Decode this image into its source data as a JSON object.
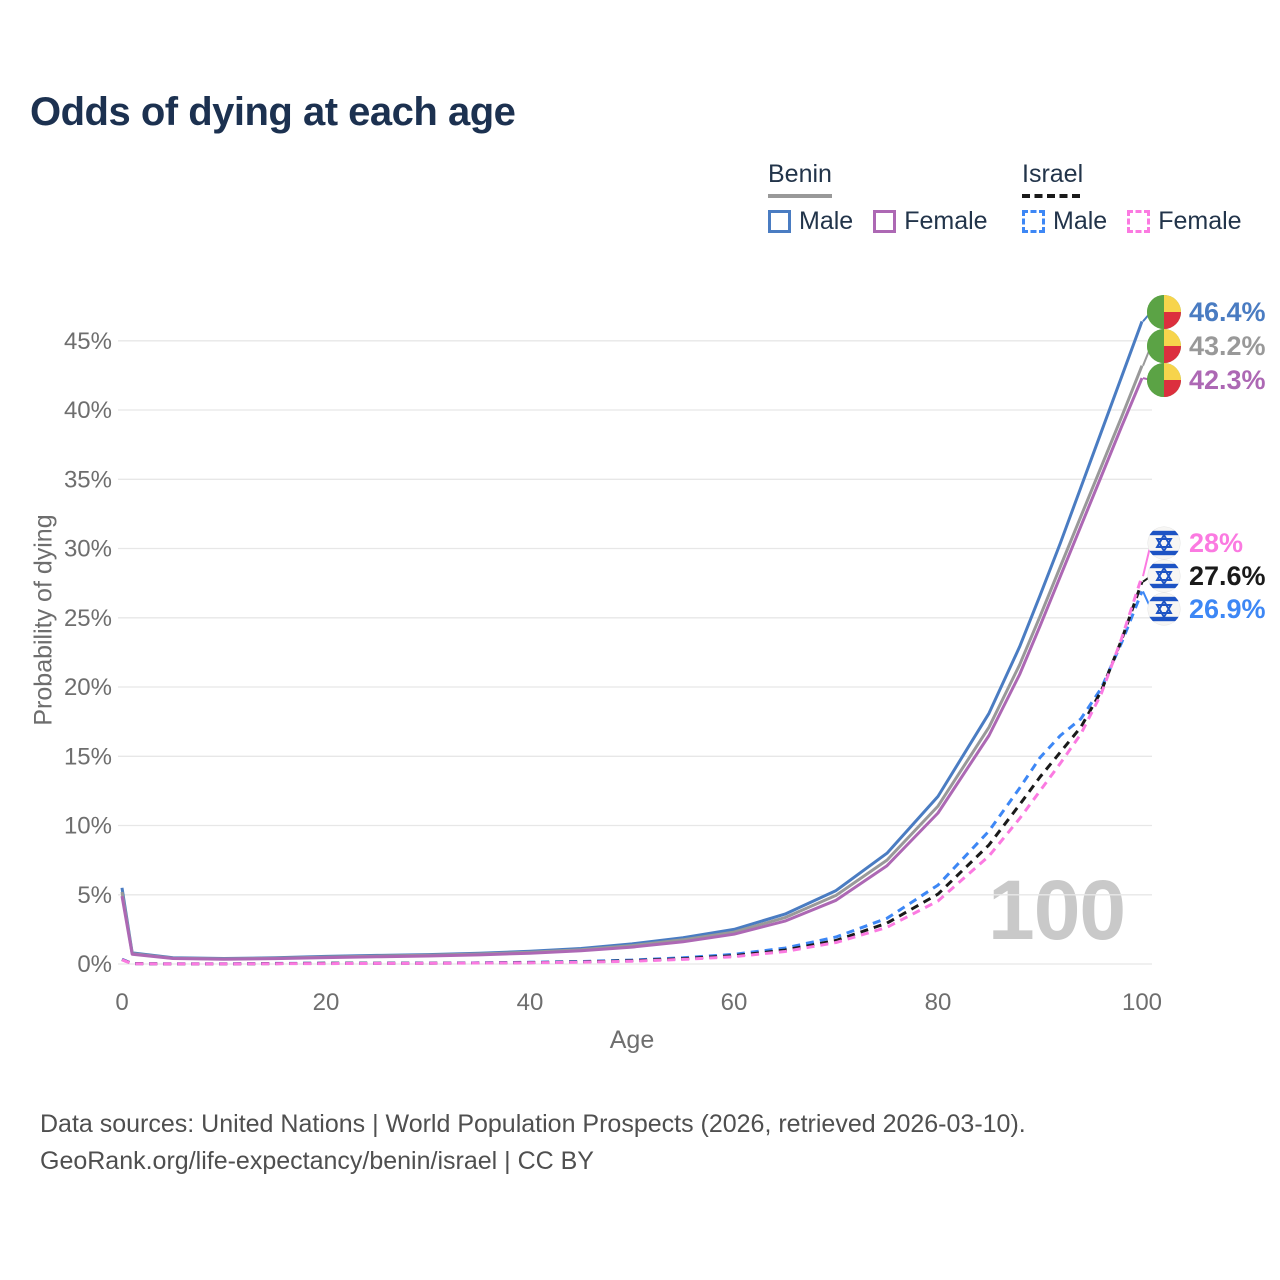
{
  "title": "Odds of dying at each age",
  "legend": {
    "groups": [
      {
        "country": "Benin",
        "line_style": "solid",
        "line_color": "#999999",
        "items": [
          {
            "label": "Male",
            "color": "#4a7cc2",
            "style": "solid"
          },
          {
            "label": "Female",
            "color": "#ad68b4",
            "style": "solid"
          }
        ]
      },
      {
        "country": "Israel",
        "line_style": "dashed",
        "line_color": "#1a1a1a",
        "items": [
          {
            "label": "Male",
            "color": "#3d87f5",
            "style": "dashed"
          },
          {
            "label": "Female",
            "color": "#fb7ae1",
            "style": "dashed"
          }
        ]
      }
    ]
  },
  "axes": {
    "y_title": "Probability of dying",
    "x_title": "Age",
    "y_ticks": [
      "0%",
      "5%",
      "10%",
      "15%",
      "20%",
      "25%",
      "30%",
      "35%",
      "40%",
      "45%"
    ]
  },
  "watermark": "100",
  "end_labels": [
    {
      "value": "46.4%",
      "color": "#4a7cc2",
      "country": "Benin",
      "series": "Benin Male"
    },
    {
      "value": "43.2%",
      "color": "#999999",
      "country": "Benin",
      "series": "Benin Both sexes"
    },
    {
      "value": "42.3%",
      "color": "#ad68b4",
      "country": "Benin",
      "series": "Benin Female"
    },
    {
      "value": "28%",
      "color": "#fb7ae1",
      "country": "Israel",
      "series": "Israel Female"
    },
    {
      "value": "27.6%",
      "color": "#1a1a1a",
      "country": "Israel",
      "series": "Israel Both sexes"
    },
    {
      "value": "26.9%",
      "color": "#3d87f5",
      "country": "Israel",
      "series": "Israel Male"
    }
  ],
  "footer": {
    "line1": "Data sources: United Nations | World Population Prospects (2026, retrieved 2026-03-10).",
    "line2": "GeoRank.org/life-expectancy/benin/israel | CC BY"
  },
  "chart_data": {
    "type": "line",
    "title": "Odds of dying at each age",
    "xlabel": "Age",
    "ylabel": "Probability of dying",
    "xlim": [
      0,
      100
    ],
    "ylim_pct": [
      0,
      47
    ],
    "x_ticks": [
      0,
      20,
      40,
      60,
      80,
      100
    ],
    "y_ticks_pct": [
      0,
      5,
      10,
      15,
      20,
      25,
      30,
      35,
      40,
      45
    ],
    "grid": "horizontal",
    "legend_position": "top-right",
    "ages": [
      0,
      1,
      5,
      10,
      15,
      20,
      25,
      30,
      35,
      40,
      45,
      50,
      55,
      60,
      65,
      70,
      75,
      80,
      85,
      88,
      90,
      92,
      94,
      96,
      98,
      100
    ],
    "series": [
      {
        "name": "Benin Male",
        "style": "solid",
        "color": "#4a7cc2",
        "end_label": "46.4%",
        "values_pct": [
          5.5,
          0.8,
          0.45,
          0.4,
          0.45,
          0.55,
          0.62,
          0.68,
          0.78,
          0.92,
          1.12,
          1.45,
          1.9,
          2.5,
          3.6,
          5.3,
          8.0,
          12.1,
          18.1,
          22.9,
          26.6,
          30.4,
          34.4,
          38.4,
          42.4,
          46.4
        ]
      },
      {
        "name": "Benin Both sexes",
        "style": "solid",
        "color": "#999999",
        "end_label": "43.2%",
        "values_pct": [
          5.2,
          0.75,
          0.42,
          0.37,
          0.42,
          0.5,
          0.57,
          0.63,
          0.72,
          0.85,
          1.03,
          1.33,
          1.75,
          2.3,
          3.35,
          4.95,
          7.5,
          11.4,
          17.1,
          21.6,
          25.1,
          28.7,
          32.3,
          35.9,
          39.5,
          43.2
        ]
      },
      {
        "name": "Benin Female",
        "style": "solid",
        "color": "#ad68b4",
        "end_label": "42.3%",
        "values_pct": [
          4.9,
          0.7,
          0.4,
          0.35,
          0.39,
          0.46,
          0.52,
          0.58,
          0.66,
          0.78,
          0.95,
          1.22,
          1.6,
          2.15,
          3.1,
          4.6,
          7.1,
          10.9,
          16.5,
          20.9,
          24.4,
          28.0,
          31.6,
          35.2,
          38.8,
          42.3
        ]
      },
      {
        "name": "Israel Male",
        "style": "dashed",
        "color": "#3d87f5",
        "end_label": "26.9%",
        "values_pct": [
          0.35,
          0.03,
          0.01,
          0.01,
          0.04,
          0.06,
          0.06,
          0.07,
          0.09,
          0.12,
          0.18,
          0.28,
          0.45,
          0.7,
          1.15,
          1.95,
          3.3,
          5.7,
          9.6,
          12.7,
          14.9,
          16.5,
          17.7,
          19.9,
          23.2,
          26.9
        ]
      },
      {
        "name": "Israel Both sexes",
        "style": "dashed",
        "color": "#1a1a1a",
        "end_label": "27.6%",
        "values_pct": [
          0.32,
          0.03,
          0.01,
          0.01,
          0.03,
          0.05,
          0.05,
          0.06,
          0.08,
          0.1,
          0.15,
          0.24,
          0.38,
          0.6,
          1.0,
          1.7,
          2.95,
          5.05,
          8.6,
          11.5,
          13.5,
          15.3,
          17.1,
          19.7,
          23.4,
          27.6
        ]
      },
      {
        "name": "Israel Female",
        "style": "dashed",
        "color": "#fb7ae1",
        "end_label": "28%",
        "values_pct": [
          0.3,
          0.02,
          0.01,
          0.01,
          0.02,
          0.03,
          0.04,
          0.05,
          0.07,
          0.09,
          0.13,
          0.2,
          0.33,
          0.53,
          0.9,
          1.55,
          2.65,
          4.55,
          7.8,
          10.5,
          12.5,
          14.5,
          16.6,
          19.5,
          23.5,
          28.0
        ]
      }
    ]
  }
}
